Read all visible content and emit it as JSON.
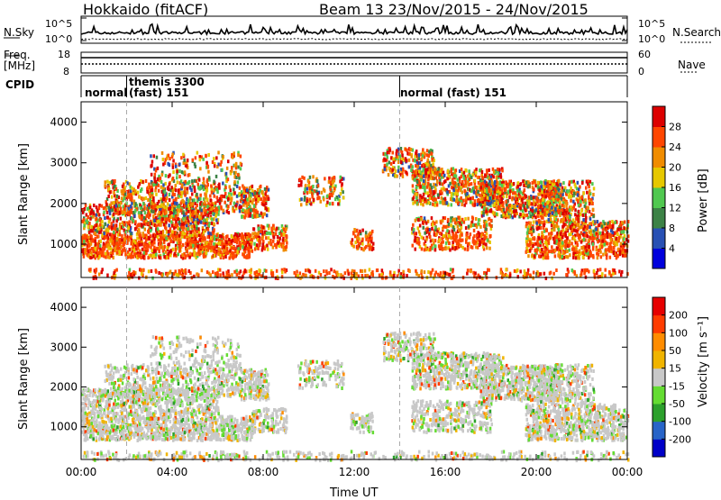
{
  "header": {
    "station": "Hokkaido (fitACF)",
    "beam_date": "Beam 13  23/Nov/2015 - 24/Nov/2015"
  },
  "noise_panel": {
    "label": "N.Sky",
    "right_label": "N.Search",
    "left_ticks": [
      "10^5",
      "10^0"
    ],
    "right_ticks": [
      "10^5",
      "10^0"
    ]
  },
  "freq_panel": {
    "label_line1": "Freq.",
    "label_line2": "[MHz]",
    "left_ticks": [
      "18",
      "8"
    ],
    "right_ticks": [
      "60",
      "0"
    ],
    "right_label": "Nave"
  },
  "cpid_panel": {
    "label": "CPID",
    "segments": [
      {
        "start_h": 0,
        "text": "normal"
      },
      {
        "start_h": 2.0,
        "text": "themis 3300"
      },
      {
        "start_h": 2.0,
        "text": "(fast) 151"
      },
      {
        "start_h": 14.0,
        "text": "normal (fast) 151"
      }
    ]
  },
  "chart_data": [
    {
      "type": "heatmap",
      "name": "power",
      "xlabel": "",
      "ylabel": "Slant Range [km]",
      "xlim": [
        0,
        24
      ],
      "ylim": [
        180,
        4500
      ],
      "yticks": [
        1000,
        2000,
        3000,
        4000
      ],
      "colorbar": {
        "label": "Power [dB]",
        "ticks": [
          4,
          8,
          12,
          16,
          20,
          24,
          28
        ],
        "range": [
          0,
          30
        ],
        "colors": [
          "#0000dc",
          "#2850b4",
          "#3c8246",
          "#50c850",
          "#e6c800",
          "#f08c00",
          "#ff4600",
          "#dc0000"
        ]
      }
    },
    {
      "type": "heatmap",
      "name": "velocity",
      "xlabel": "Time UT",
      "ylabel": "Slant Range [km]",
      "xlim": [
        0,
        24
      ],
      "ylim": [
        180,
        4500
      ],
      "yticks": [
        1000,
        2000,
        3000,
        4000
      ],
      "xticks": [
        "00:00",
        "04:00",
        "08:00",
        "12:00",
        "16:00",
        "20:00",
        "00:00"
      ],
      "colorbar": {
        "label": "Velocity [m s⁻¹]",
        "ticks": [
          200,
          100,
          50,
          15,
          -15,
          -50,
          -100,
          -200
        ],
        "colors": [
          "#0000c8",
          "#2864c8",
          "#2ca02c",
          "#64dc32",
          "#c8c8c8",
          "#f0b400",
          "#ff8c00",
          "#ff3c00",
          "#e60000"
        ]
      }
    }
  ]
}
